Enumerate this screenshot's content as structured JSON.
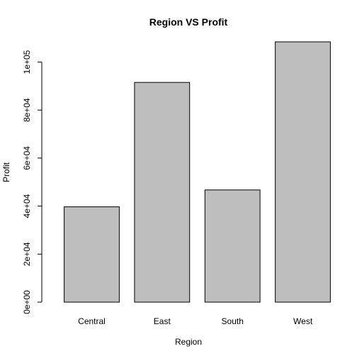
{
  "chart_data": {
    "type": "bar",
    "title": "Region VS Profit",
    "xlabel": "Region",
    "ylabel": "Profit",
    "categories": [
      "Central",
      "East",
      "South",
      "West"
    ],
    "values": [
      39706,
      91523,
      46749,
      108418
    ],
    "ylim": [
      0,
      108418
    ],
    "yticks": [
      0,
      20000,
      40000,
      60000,
      80000,
      100000
    ],
    "ytick_labels": [
      "0e+00",
      "2e+04",
      "4e+04",
      "6e+04",
      "8e+04",
      "1e+05"
    ],
    "bar_color": "#bebebe",
    "bar_border_color": "#000000",
    "grid": false,
    "legend": "none"
  }
}
